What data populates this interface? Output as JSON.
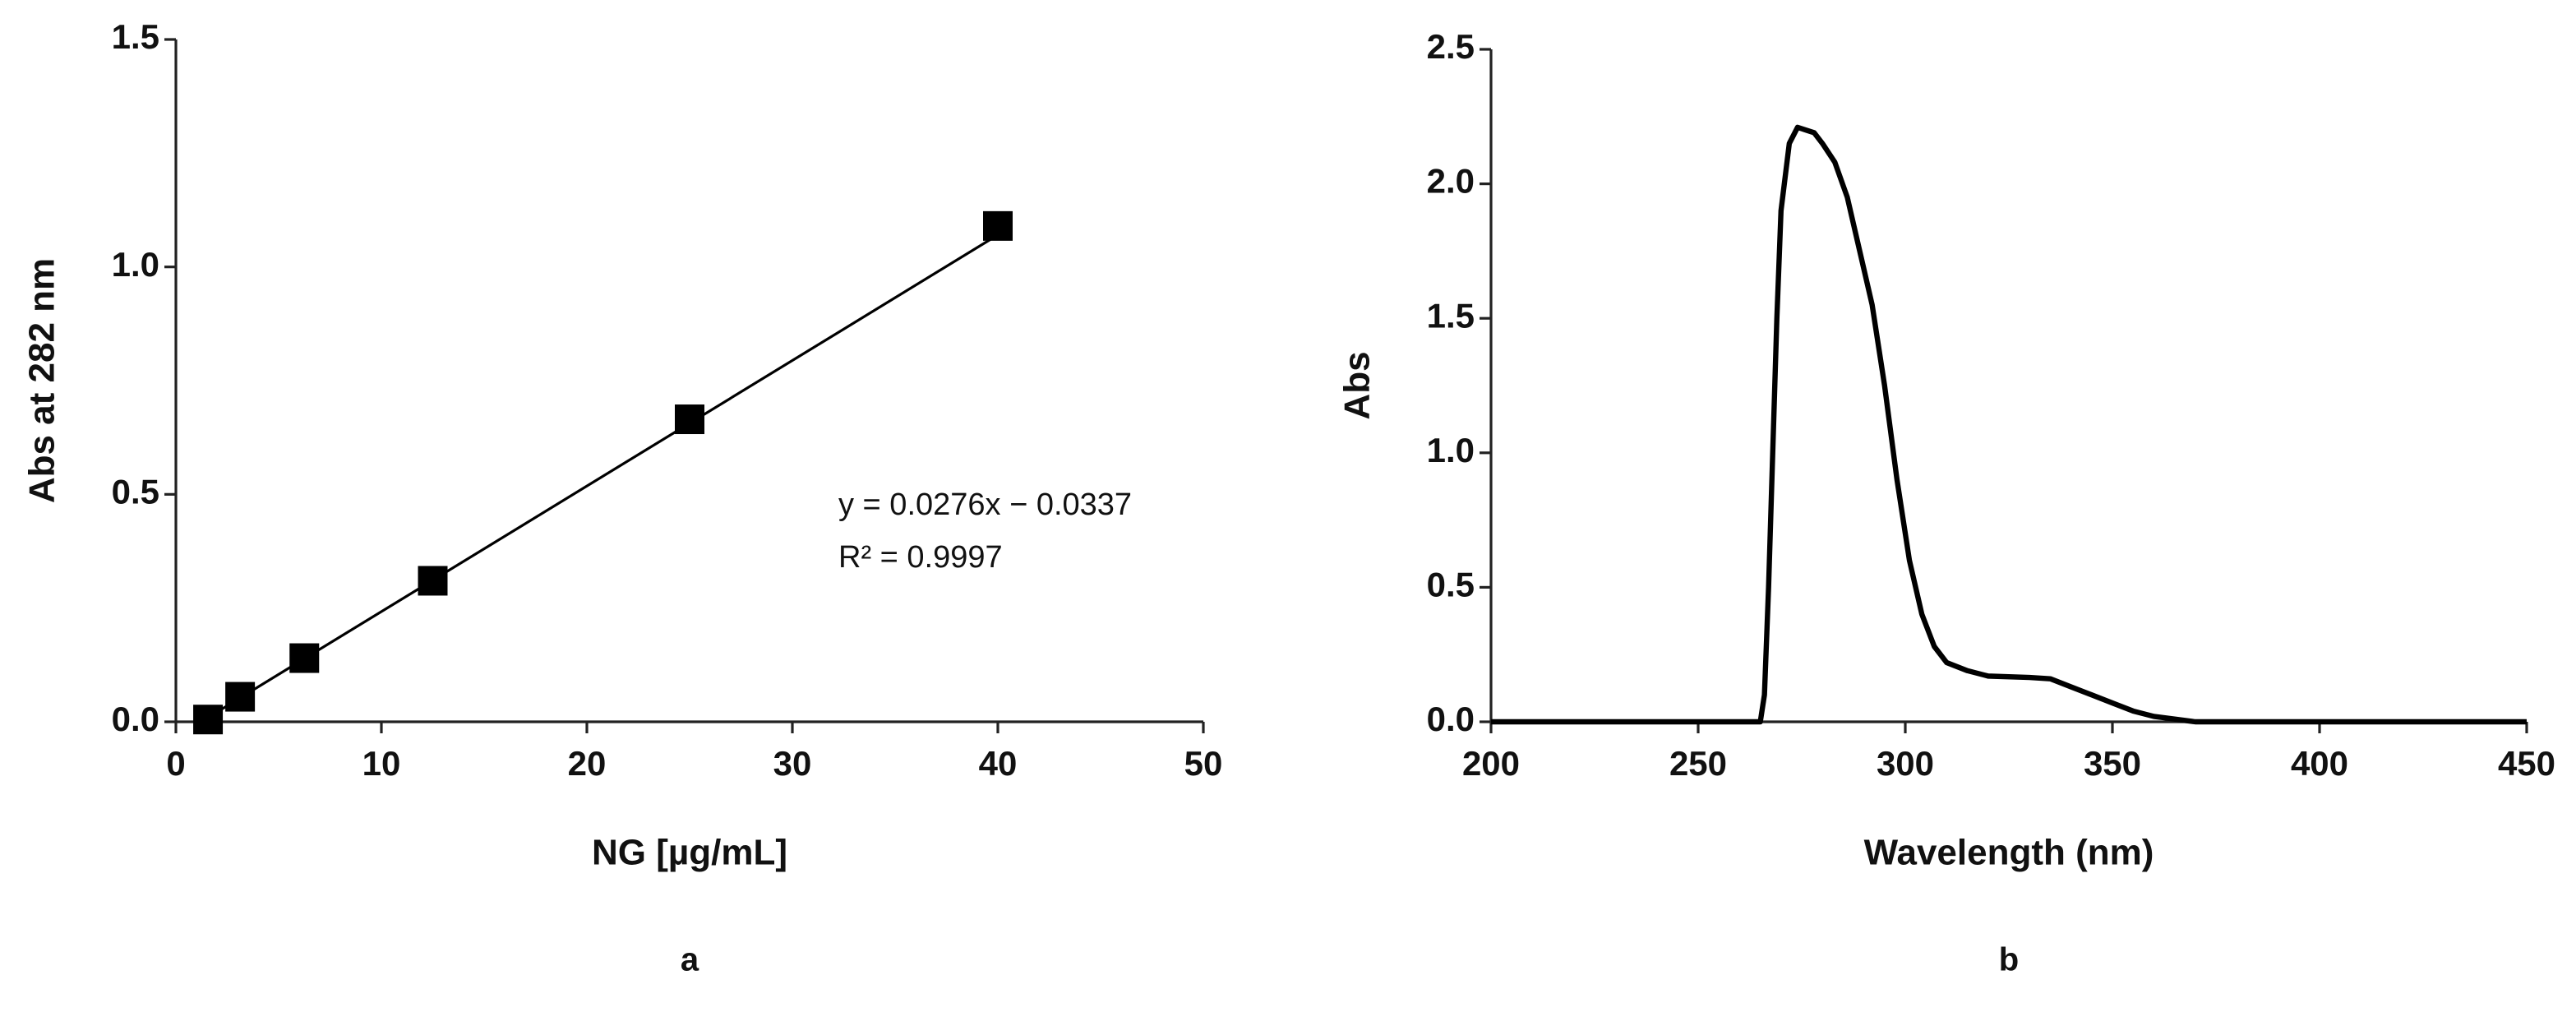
{
  "chart_data": [
    {
      "type": "scatter",
      "panel_label": "a",
      "x_label": "NG [µg/mL]",
      "y_label": "Abs at 282 nm",
      "x": [
        1.5625,
        3.125,
        6.25,
        12.5,
        25,
        40
      ],
      "values": [
        0.005,
        0.055,
        0.14,
        0.31,
        0.665,
        1.09
      ],
      "color": "#000000",
      "fit": {
        "slope": 0.0276,
        "intercept": -0.0337
      },
      "annotations": [
        "y = 0.0276x − 0.0337",
        "R² = 0.9997"
      ],
      "xlim": [
        0,
        50
      ],
      "xticks": [
        0,
        10,
        20,
        30,
        40,
        50
      ],
      "ylim": [
        0,
        1.5
      ],
      "yticks": [
        {
          "value": 0,
          "label": "0.0"
        },
        {
          "value": 0.5,
          "label": "0.5"
        },
        {
          "value": 1,
          "label": "1.0"
        },
        {
          "value": 1.5,
          "label": "1.5"
        }
      ]
    },
    {
      "type": "line",
      "panel_label": "b",
      "x_label": "Wavelength (nm)",
      "y_label": "Abs",
      "x": [
        200,
        260,
        265,
        266,
        267,
        268,
        269,
        270,
        272,
        274,
        276,
        278,
        280,
        283,
        286,
        289,
        292,
        295,
        298,
        301,
        304,
        307,
        310,
        315,
        320,
        330,
        335,
        340,
        345,
        350,
        355,
        360,
        365,
        370,
        400,
        450
      ],
      "values": [
        0,
        0,
        0,
        0.1,
        0.5,
        1.0,
        1.5,
        1.9,
        2.15,
        2.21,
        2.2,
        2.19,
        2.15,
        2.08,
        1.95,
        1.75,
        1.55,
        1.25,
        0.9,
        0.6,
        0.4,
        0.28,
        0.22,
        0.19,
        0.17,
        0.165,
        0.16,
        0.13,
        0.1,
        0.07,
        0.04,
        0.02,
        0.01,
        0,
        0,
        0
      ],
      "color": "#000000",
      "xlim": [
        200,
        450
      ],
      "xticks": [
        200,
        250,
        300,
        350,
        400,
        450
      ],
      "ylim": [
        0,
        2.5
      ],
      "yticks": [
        {
          "value": 0,
          "label": "0.0"
        },
        {
          "value": 0.5,
          "label": "0.5"
        },
        {
          "value": 1,
          "label": "1.0"
        },
        {
          "value": 1.5,
          "label": "1.5"
        },
        {
          "value": 2,
          "label": "2.0"
        },
        {
          "value": 2.5,
          "label": "2.5"
        }
      ]
    }
  ]
}
